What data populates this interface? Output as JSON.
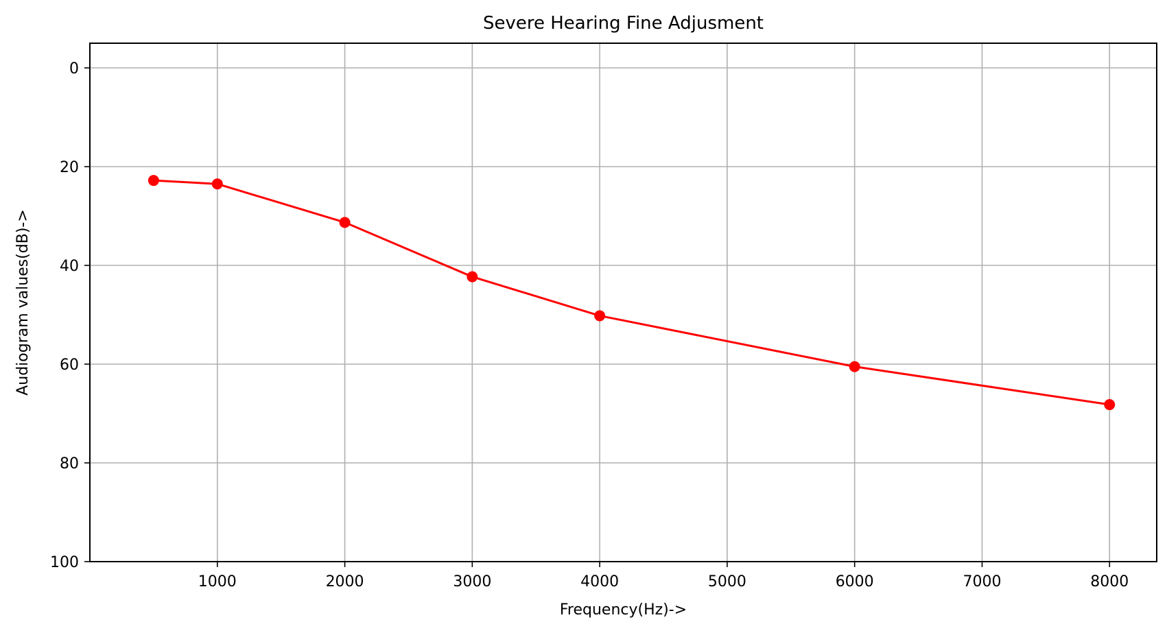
{
  "chart_data": {
    "type": "line",
    "title": "Severe Hearing Fine Adjusment",
    "xlabel": "Frequency(Hz)->",
    "ylabel": "Audiogram values(dB)->",
    "xlim": [
      0,
      8370
    ],
    "ylim": [
      100,
      -5
    ],
    "y_inverted": true,
    "x_ticks": [
      1000,
      2000,
      3000,
      4000,
      5000,
      6000,
      7000,
      8000
    ],
    "x_tick_labels": [
      "1000",
      "2000",
      "3000",
      "4000",
      "5000",
      "6000",
      "7000",
      "8000"
    ],
    "y_ticks": [
      0,
      20,
      40,
      60,
      80,
      100
    ],
    "y_tick_labels": [
      "0",
      "20",
      "40",
      "60",
      "80",
      "100"
    ],
    "grid": true,
    "legend": null,
    "series": [
      {
        "color": "#ff0000",
        "marker": "circle",
        "points": [
          {
            "x": 500,
            "y": 22.8
          },
          {
            "x": 1000,
            "y": 23.5
          },
          {
            "x": 2000,
            "y": 31.3
          },
          {
            "x": 3000,
            "y": 42.3
          },
          {
            "x": 4000,
            "y": 50.2
          },
          {
            "x": 6000,
            "y": 60.5
          },
          {
            "x": 8000,
            "y": 68.2
          }
        ]
      }
    ]
  }
}
